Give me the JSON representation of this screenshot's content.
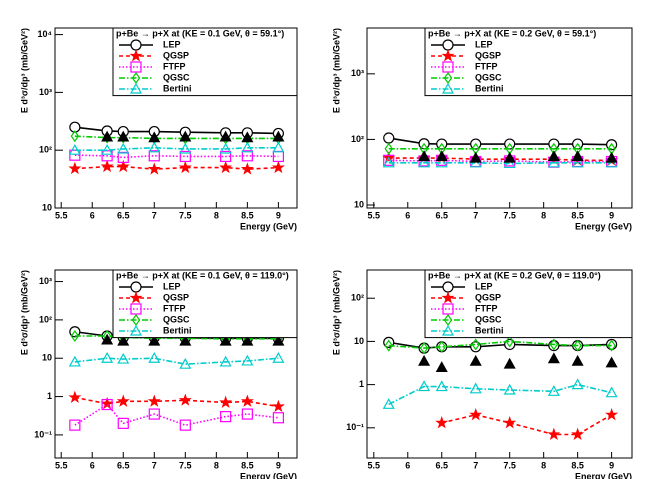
{
  "chart_data": [
    {
      "type": "line",
      "title": "p+Be → p+X at (KE = 0.1 GeV, θ =  59.1°)",
      "x_label": "Energy (GeV)",
      "y_label": "E d³σ/dp³ (mb/GeV²)",
      "log_y": true,
      "legend": "top-right",
      "x": [
        5.72,
        6.24,
        6.5,
        7.0,
        7.5,
        8.15,
        8.5,
        9.0
      ],
      "xlim": [
        5.4,
        9.3
      ],
      "xticks": [
        5.5,
        6,
        6.5,
        7,
        7.5,
        8,
        8.5,
        9
      ],
      "ylim": [
        10,
        13000
      ],
      "yticks": [
        {
          "value": 10,
          "label": "10"
        },
        {
          "value": 100,
          "label": "10²"
        },
        {
          "value": 1000,
          "label": "10³"
        },
        {
          "value": 10000,
          "label": "10⁴"
        }
      ],
      "series": [
        {
          "name": "LEP",
          "color": "#000000",
          "marker": "circle",
          "line": "solid",
          "values": [
            250,
            215,
            210,
            210,
            205,
            200,
            200,
            195
          ]
        },
        {
          "name": "QGSP",
          "color": "#ff0000",
          "marker": "star",
          "line": "dashed",
          "values": [
            48,
            52,
            52,
            47,
            50,
            50,
            47,
            50
          ]
        },
        {
          "name": "FTFP",
          "color": "#ff00ff",
          "marker": "square",
          "line": "dotted",
          "values": [
            82,
            80,
            75,
            80,
            78,
            78,
            80,
            78
          ]
        },
        {
          "name": "QGSC",
          "color": "#00cc00",
          "marker": "diamond",
          "line": "dashdot",
          "values": [
            175,
            165,
            165,
            160,
            160,
            160,
            160,
            160
          ]
        },
        {
          "name": "Bertini",
          "color": "#00cccc",
          "marker": "triangle",
          "line": "dashdot",
          "values": [
            100,
            100,
            105,
            110,
            105,
            105,
            110,
            110
          ]
        },
        {
          "color": "#000000",
          "marker": "triangle-filled",
          "line": "none",
          "values": [
            null,
            170,
            170,
            165,
            170,
            170,
            165,
            170
          ]
        }
      ]
    },
    {
      "type": "line",
      "title": "p+Be → p+X at (KE = 0.2 GeV, θ =  59.1°)",
      "x_label": "Energy (GeV)",
      "y_label": "E d³σ/dp³ (mb/GeV²)",
      "log_y": true,
      "legend": "top-right",
      "x": [
        5.72,
        6.24,
        6.5,
        7.0,
        7.5,
        8.15,
        8.5,
        9.0
      ],
      "xlim": [
        5.4,
        9.3
      ],
      "xticks": [
        5.5,
        6,
        6.5,
        7,
        7.5,
        8,
        8.5,
        9
      ],
      "ylim": [
        9,
        5000
      ],
      "yticks": [
        {
          "value": 10,
          "label": "10"
        },
        {
          "value": 100,
          "label": "10²"
        },
        {
          "value": 1000,
          "label": "10³"
        }
      ],
      "series": [
        {
          "name": "LEP",
          "color": "#000000",
          "marker": "circle",
          "line": "solid",
          "values": [
            105,
            86,
            85,
            85,
            85,
            85,
            85,
            83
          ]
        },
        {
          "name": "QGSP",
          "color": "#ff0000",
          "marker": "star",
          "line": "dashed",
          "values": [
            52,
            52,
            52,
            50,
            50,
            50,
            48,
            48
          ]
        },
        {
          "name": "FTFP",
          "color": "#ff00ff",
          "marker": "square",
          "line": "dotted",
          "values": [
            48,
            47,
            48,
            46,
            47,
            45,
            46,
            46
          ]
        },
        {
          "name": "QGSC",
          "color": "#00cc00",
          "marker": "diamond",
          "line": "dashdot",
          "values": [
            72,
            72,
            72,
            72,
            72,
            72,
            72,
            72
          ]
        },
        {
          "name": "Bertini",
          "color": "#00cccc",
          "marker": "triangle",
          "line": "dashdot",
          "values": [
            44,
            44,
            44,
            44,
            43,
            44,
            44,
            44
          ]
        },
        {
          "color": "#000000",
          "marker": "triangle-filled",
          "line": "none",
          "values": [
            null,
            55,
            55,
            52,
            52,
            55,
            55,
            52
          ]
        }
      ]
    },
    {
      "type": "line",
      "title": "p+Be → p+X at (KE = 0.1 GeV, θ = 119.0°)",
      "x_label": "Energy (GeV)",
      "y_label": "E d³σ/dp³ (mb/GeV²)",
      "log_y": true,
      "legend": "top-right",
      "x": [
        5.72,
        6.24,
        6.5,
        7.0,
        7.5,
        8.15,
        8.5,
        9.0
      ],
      "xlim": [
        5.4,
        9.3
      ],
      "xticks": [
        5.5,
        6,
        6.5,
        7,
        7.5,
        8,
        8.5,
        9
      ],
      "ylim": [
        0.025,
        2000
      ],
      "yticks": [
        {
          "value": 0.1,
          "label": "10⁻¹"
        },
        1,
        10,
        {
          "value": 100,
          "label": "10²"
        },
        {
          "value": 1000,
          "label": "10³"
        }
      ],
      "series": [
        {
          "name": "LEP",
          "color": "#000000",
          "marker": "circle",
          "line": "solid",
          "values": [
            49,
            38,
            35,
            35,
            34,
            33,
            33,
            33
          ]
        },
        {
          "name": "QGSP",
          "color": "#ff0000",
          "marker": "star",
          "line": "dashed",
          "values": [
            0.95,
            0.65,
            0.75,
            0.75,
            0.8,
            0.7,
            0.75,
            0.55
          ]
        },
        {
          "name": "FTFP",
          "color": "#ff00ff",
          "marker": "square",
          "line": "dotted",
          "values": [
            0.18,
            0.62,
            0.2,
            0.35,
            0.18,
            0.3,
            0.35,
            0.28
          ]
        },
        {
          "name": "QGSC",
          "color": "#00cc00",
          "marker": "diamond",
          "line": "dashdot",
          "values": [
            38,
            38,
            35,
            33,
            33,
            32,
            32,
            32
          ]
        },
        {
          "name": "Bertini",
          "color": "#00cccc",
          "marker": "triangle",
          "line": "dashdot",
          "values": [
            8,
            10,
            9.5,
            10,
            7,
            8,
            8.5,
            10
          ]
        },
        {
          "color": "#000000",
          "marker": "triangle-filled",
          "line": "none",
          "values": [
            null,
            30,
            28,
            28,
            28,
            28,
            28,
            28
          ]
        }
      ]
    },
    {
      "type": "line",
      "title": "p+Be → p+X at (KE = 0.2 GeV, θ = 119.0°)",
      "x_label": "Energy (GeV)",
      "y_label": "E d³σ/dp³ (mb/GeV²)",
      "log_y": true,
      "legend": "top-right",
      "x": [
        5.72,
        6.24,
        6.5,
        7.0,
        7.5,
        8.15,
        8.5,
        9.0
      ],
      "xlim": [
        5.4,
        9.3
      ],
      "xticks": [
        5.5,
        6,
        6.5,
        7,
        7.5,
        8,
        8.5,
        9
      ],
      "ylim": [
        0.02,
        450
      ],
      "yticks": [
        {
          "value": 0.1,
          "label": "10⁻¹"
        },
        1,
        10,
        {
          "value": 100,
          "label": "10²"
        }
      ],
      "series": [
        {
          "name": "LEP",
          "color": "#000000",
          "marker": "circle",
          "line": "solid",
          "values": [
            9.5,
            7,
            7.5,
            7.5,
            8.5,
            8,
            8,
            8.5
          ]
        },
        {
          "name": "QGSP",
          "color": "#ff0000",
          "marker": "star",
          "line": "dashed",
          "values": [
            null,
            null,
            0.13,
            0.2,
            0.13,
            0.07,
            0.07,
            0.2
          ]
        },
        {
          "name": "FTFP",
          "color": "#ff00ff",
          "marker": "square",
          "line": "dotted",
          "values": [
            null,
            null,
            null,
            null,
            null,
            null,
            null,
            null
          ]
        },
        {
          "name": "QGSC",
          "color": "#00cc00",
          "marker": "diamond",
          "line": "dashdot",
          "values": [
            8,
            7,
            7.5,
            8.5,
            10,
            8.5,
            8,
            8
          ]
        },
        {
          "name": "Bertini",
          "color": "#00cccc",
          "marker": "triangle",
          "line": "dashdot",
          "values": [
            0.35,
            0.9,
            0.9,
            0.8,
            0.75,
            0.7,
            1,
            0.65
          ]
        },
        {
          "color": "#000000",
          "marker": "triangle-filled",
          "line": "none",
          "values": [
            null,
            3.5,
            2.5,
            3.5,
            3,
            4,
            3.5,
            3.2
          ]
        }
      ]
    }
  ]
}
